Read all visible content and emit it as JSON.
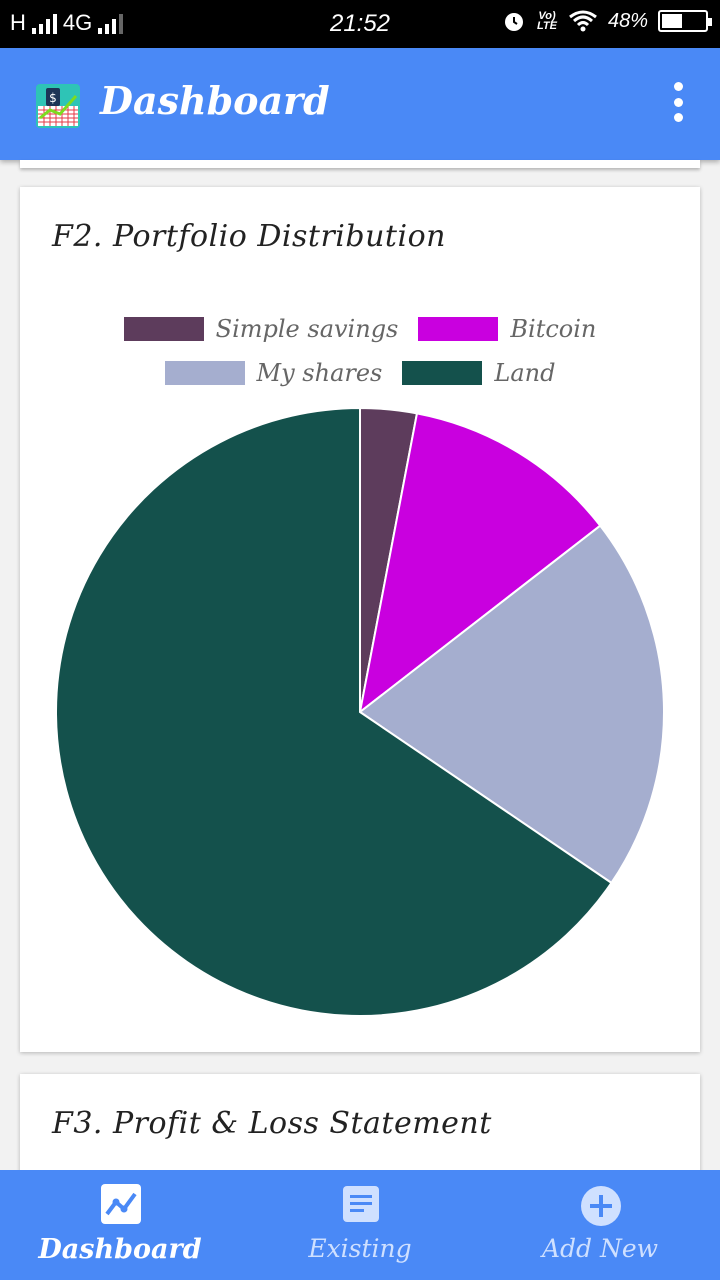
{
  "status": {
    "network": "H",
    "net_type": "4G",
    "time": "21:52",
    "lte": "Vo) LTE",
    "battery": "48%"
  },
  "appbar": {
    "title": "Dashboard"
  },
  "cards": {
    "portfolio": {
      "title": "F2. Portfolio Distribution"
    },
    "pnl": {
      "title": "F3. Profit & Loss Statement"
    }
  },
  "chart_data": {
    "type": "pie",
    "title": "F2. Portfolio Distribution",
    "legend_placement": "top",
    "categories": [
      "Simple savings",
      "Bitcoin",
      "My shares",
      "Land"
    ],
    "values": [
      3,
      11.5,
      20,
      65.5
    ],
    "colors": [
      "#5d3c5c",
      "#c900df",
      "#a5aecf",
      "#14514c"
    ]
  },
  "nav": {
    "items": [
      {
        "label": "Dashboard",
        "icon": "chart-line-icon"
      },
      {
        "label": "Existing",
        "icon": "document-icon"
      },
      {
        "label": "Add New",
        "icon": "add-circle-icon"
      }
    ]
  }
}
